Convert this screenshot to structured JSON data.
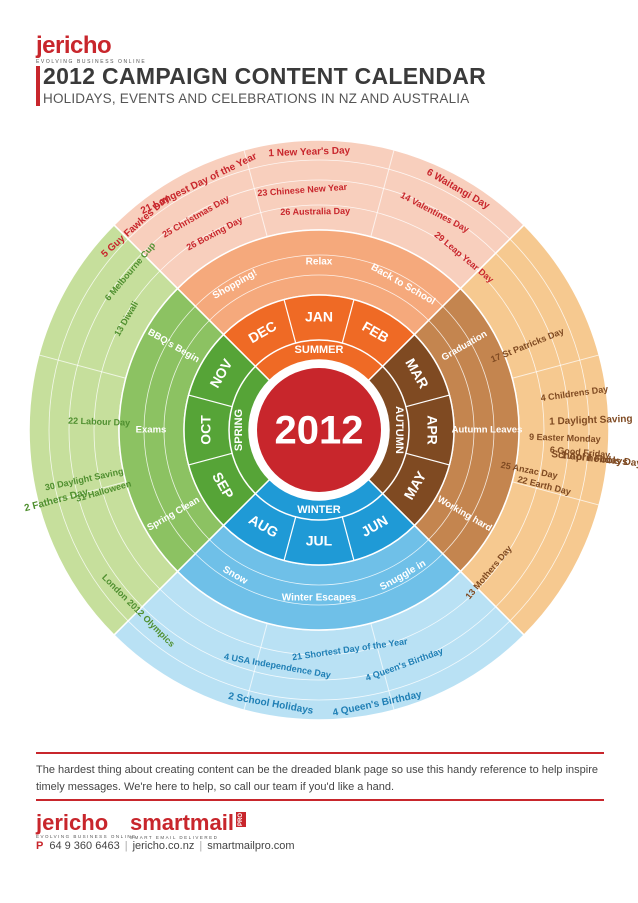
{
  "header": {
    "logo": "jericho",
    "logo_tagline": "EVOLVING BUSINESS ONLINE",
    "title": "2012  CAMPAIGN CONTENT CALENDAR",
    "subtitle": "HOLIDAYS, EVENTS AND CELEBRATIONS IN NZ AND AUSTRALIA"
  },
  "wheel": {
    "year": "2012",
    "seasons": [
      {
        "name": "SUMMER",
        "color": "#ef6a25",
        "light": "#f5a97c",
        "pale": "#f8cfbd",
        "months": [
          "DEC",
          "JAN",
          "FEB"
        ]
      },
      {
        "name": "AUTUMN",
        "color": "#7f4a22",
        "light": "#c4854f",
        "pale": "#f6c990",
        "months": [
          "MAR",
          "APR",
          "MAY"
        ]
      },
      {
        "name": "WINTER",
        "color": "#1f9ad6",
        "light": "#6fc0e8",
        "pale": "#b9e1f4",
        "months": [
          "JUN",
          "JUL",
          "AUG"
        ]
      },
      {
        "name": "SPRING",
        "color": "#56a437",
        "light": "#8cc262",
        "pale": "#c6df9c",
        "months": [
          "SEP",
          "OCT",
          "NOV"
        ]
      }
    ],
    "themes": [
      {
        "text": "Shopping!"
      },
      {
        "text": "Relax"
      },
      {
        "text": "Back to School"
      },
      {
        "text": "Graduation"
      },
      {
        "text": "Autumn Leaves"
      },
      {
        "text": "Working hard"
      },
      {
        "text": "Snuggle in"
      },
      {
        "text": "Winter Escapes"
      },
      {
        "text": "Snow"
      },
      {
        "text": "Spring Clean"
      },
      {
        "text": "Exams"
      },
      {
        "text": "BBQ's Begin"
      }
    ],
    "events": [
      {
        "day": "1",
        "text": "New Year's Day"
      },
      {
        "day": "6",
        "text": "Waitangi Day"
      },
      {
        "day": "23",
        "text": "Chinese New Year"
      },
      {
        "day": "26",
        "text": "Australia Day"
      },
      {
        "day": "14",
        "text": "Valentines Day"
      },
      {
        "day": "29",
        "text": "Leap Year Day"
      },
      {
        "day": "17",
        "text": "St Patricks Day"
      },
      {
        "day": "4",
        "text": "Childrens Day"
      },
      {
        "day": "1",
        "text": "April Fools Day"
      },
      {
        "day": "6",
        "text": "Good Friday"
      },
      {
        "day": "9",
        "text": "Easter Monday"
      },
      {
        "day": "22",
        "text": "Earth Day"
      },
      {
        "day": "25",
        "text": "Anzac Day"
      },
      {
        "day": "13",
        "text": "Mothers Day"
      },
      {
        "day": "1",
        "text": "Daylight Saving"
      },
      {
        "day": "",
        "text": "School holidays"
      },
      {
        "day": "4",
        "text": "Queen's Birthday"
      },
      {
        "day": "4",
        "text": "Queen's Birthday"
      },
      {
        "day": "21",
        "text": "Shortest Day of the Year"
      },
      {
        "day": "4",
        "text": "USA Independence Day"
      },
      {
        "day": "2",
        "text": "School Holidays"
      },
      {
        "day": "",
        "text": "London 2012 Olympics"
      },
      {
        "day": "2",
        "text": "Fathers Day"
      },
      {
        "day": "30",
        "text": "Daylight Saving"
      },
      {
        "day": "31",
        "text": "Halloween"
      },
      {
        "day": "22",
        "text": "Labour Day"
      },
      {
        "day": "13",
        "text": "Diwali"
      },
      {
        "day": "6",
        "text": "Melbourne Cup"
      },
      {
        "day": "5",
        "text": "Guy Fawkes Day"
      },
      {
        "day": "21",
        "text": "Longest Day of the Year"
      },
      {
        "day": "25",
        "text": "Christmas Day"
      },
      {
        "day": "26",
        "text": "Boxing Day"
      }
    ]
  },
  "footer": {
    "text": "The hardest thing about creating content can be the dreaded blank page so use this handy reference to help inspire timely messages.  We're here to help, so call our team if you'd like a hand.",
    "logo1": "jericho",
    "logo1_tagline": "EVOLVING BUSINESS ONLINE",
    "logo2": "smartmail",
    "logo2_badge": "PRO",
    "logo2_tagline": "SMART EMAIL DELIVERED",
    "phone_label": "P",
    "phone": "64 9 360 6463",
    "site1": "jericho.co.nz",
    "site2": "smartmailpro.com"
  }
}
